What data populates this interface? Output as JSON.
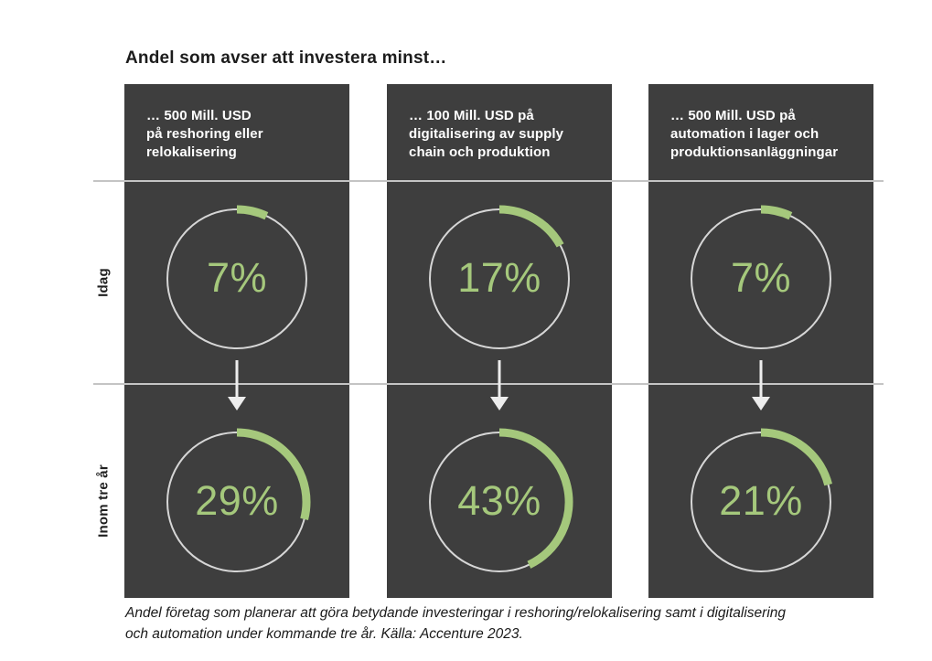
{
  "title": "Andel som avser att investera minst…",
  "row_labels": {
    "top": "Idag",
    "bottom": "Inom tre år"
  },
  "panels": [
    {
      "header": "… 500 Mill. USD\npå reshoring eller\nrelokalisering",
      "cells": [
        {
          "pct": 7,
          "label": "7%"
        },
        {
          "pct": 29,
          "label": "29%"
        }
      ]
    },
    {
      "header": "… 100 Mill. USD på\ndigitalisering av supply\nchain och produktion",
      "cells": [
        {
          "pct": 17,
          "label": "17%"
        },
        {
          "pct": 43,
          "label": "43%"
        }
      ]
    },
    {
      "header": "… 500 Mill. USD på\nautomation i lager och\nproduktionsanläggningar",
      "cells": [
        {
          "pct": 7,
          "label": "7%"
        },
        {
          "pct": 21,
          "label": "21%"
        }
      ]
    }
  ],
  "footer": {
    "lines": [
      "Andel företag som planerar att göra betydande investeringar i reshoring/relokalisering samt i digitalisering",
      "och automation under kommande tre år. Källa: Accenture 2023."
    ]
  },
  "colors": {
    "accent_green": "#a5c87c",
    "panel_background": "#3e3e3e",
    "ring_gray": "#d6d6d6",
    "divider_gray": "#c4c4c4",
    "arrow_white": "#ededed"
  },
  "chart_data": {
    "type": "donut",
    "title": "Andel som avser att investera minst…",
    "row_labels": [
      "Idag",
      "Inom tre år"
    ],
    "categories": [
      "… 500 Mill. USD på reshoring eller relokalisering",
      "… 100 Mill. USD på digitalisering av supply chain och produktion",
      "… 500 Mill. USD på automation i lager och produktionsanläggningar"
    ],
    "series": [
      {
        "name": "Idag",
        "values": [
          7,
          17,
          7
        ]
      },
      {
        "name": "Inom tre år",
        "values": [
          29,
          43,
          21
        ]
      }
    ],
    "unit": "%",
    "value_range": [
      0,
      100
    ],
    "arc_start": "top",
    "arc_direction": "clockwise",
    "caption": "Andel företag som planerar att göra betydande investeringar i reshoring/relokalisering samt i digitalisering och automation under kommande tre år. Källa: Accenture 2023."
  }
}
